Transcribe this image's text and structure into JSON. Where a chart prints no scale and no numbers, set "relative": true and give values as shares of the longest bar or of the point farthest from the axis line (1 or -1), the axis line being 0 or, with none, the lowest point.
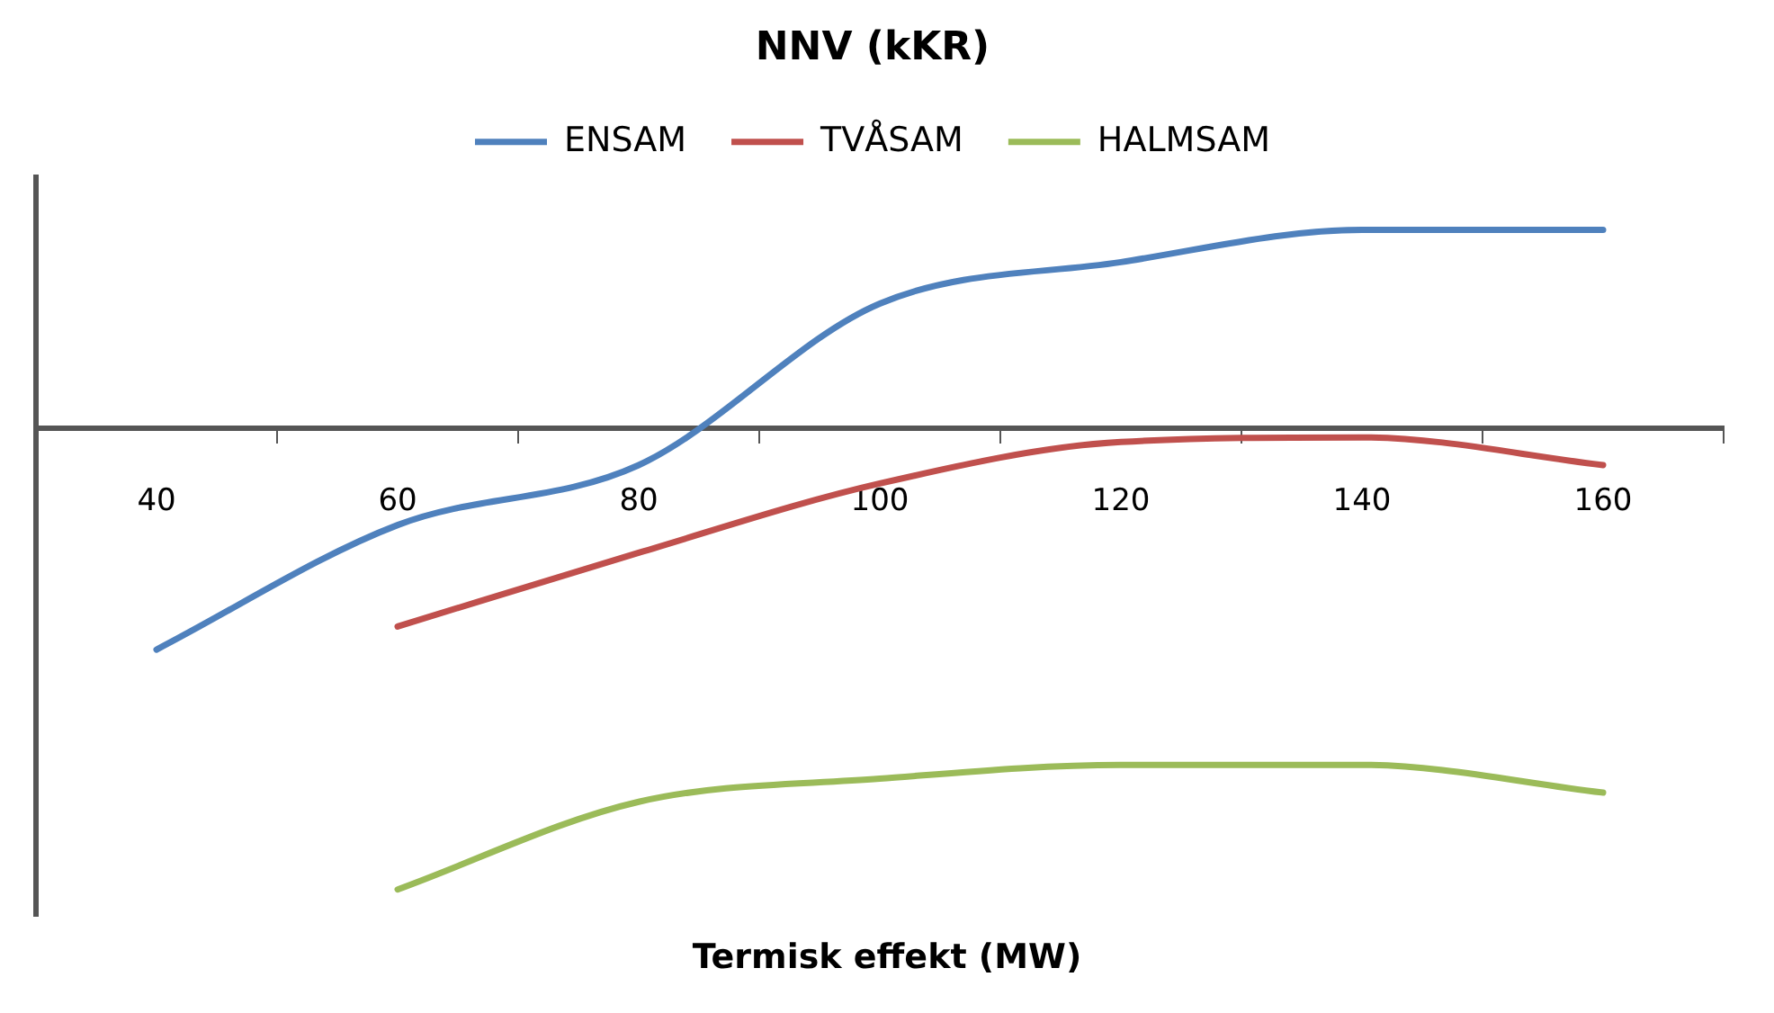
{
  "chart_data": {
    "type": "line",
    "title": "NNV (kKR)",
    "xlabel": "Termisk effekt (MW)",
    "relative": true,
    "legend": "top",
    "categories": [
      "40",
      "60",
      "80",
      "100",
      "120",
      "140",
      "160"
    ],
    "series": [
      {
        "name": "ENSAM",
        "color": "#4f81bd",
        "values": [
          -0.48,
          -0.21,
          -0.08,
          0.27,
          0.36,
          0.43,
          0.43
        ]
      },
      {
        "name": "TVÅSAM",
        "color": "#c0504d",
        "values": [
          null,
          -0.43,
          -0.27,
          -0.12,
          -0.03,
          -0.02,
          -0.08
        ]
      },
      {
        "name": "HALMSAM",
        "color": "#9bbb59",
        "values": [
          null,
          -1,
          -0.81,
          -0.76,
          -0.73,
          -0.73,
          -0.79
        ]
      }
    ]
  }
}
